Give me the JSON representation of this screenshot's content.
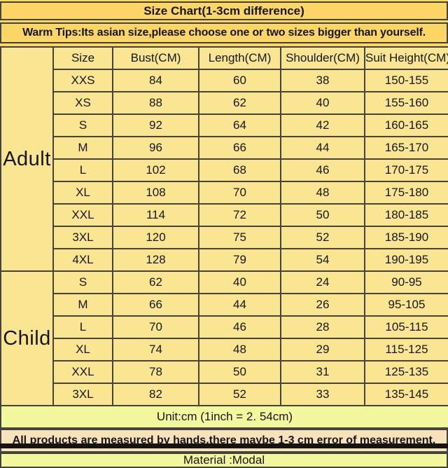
{
  "title": "Size Chart(1-3cm difference)",
  "warm_tips": "Warm Tips:Its asian size,please choose one or two sizes bigger than yourself.",
  "table": {
    "headers": [
      "Size",
      "Bust(CM)",
      "Length(CM)",
      "Shoulder(CM)",
      "Suit Height(CM)"
    ],
    "groups": [
      {
        "label": "Adult",
        "rows": [
          [
            "XXS",
            "84",
            "60",
            "38",
            "150-155"
          ],
          [
            "XS",
            "88",
            "62",
            "40",
            "155-160"
          ],
          [
            "S",
            "92",
            "64",
            "42",
            "160-165"
          ],
          [
            "M",
            "96",
            "66",
            "44",
            "165-170"
          ],
          [
            "L",
            "102",
            "68",
            "46",
            "170-175"
          ],
          [
            "XL",
            "108",
            "70",
            "48",
            "175-180"
          ],
          [
            "XXL",
            "114",
            "72",
            "50",
            "180-185"
          ],
          [
            "3XL",
            "120",
            "75",
            "52",
            "185-190"
          ],
          [
            "4XL",
            "128",
            "79",
            "54",
            "190-195"
          ]
        ]
      },
      {
        "label": "Child",
        "rows": [
          [
            "S",
            "62",
            "40",
            "24",
            "90-95"
          ],
          [
            "M",
            "66",
            "44",
            "26",
            "95-105"
          ],
          [
            "L",
            "70",
            "46",
            "28",
            "105-115"
          ],
          [
            "XL",
            "74",
            "48",
            "29",
            "115-125"
          ],
          [
            "XXL",
            "78",
            "50",
            "31",
            "125-135"
          ],
          [
            "3XL",
            "82",
            "52",
            "33",
            "135-145"
          ]
        ]
      }
    ]
  },
  "unit_note": "Unit:cm (1inch = 2. 54cm)",
  "measure_note": "All products are measured by hands,there maybe 1-3 cm error of measurement.",
  "material_note": "Material :Modal",
  "colors": {
    "page_background": "#fbd565",
    "table_background": "#fae593",
    "note_background": "#f3f79e",
    "measure_background": "#f8e2bd",
    "border": "#44443a",
    "text": "#161616",
    "bottom_bar": "#141414"
  },
  "chart_data": {
    "type": "table",
    "title": "Size Chart(1-3cm difference)",
    "columns": [
      "Group",
      "Size",
      "Bust(CM)",
      "Length(CM)",
      "Shoulder(CM)",
      "Suit Height(CM)"
    ],
    "rows": [
      [
        "Adult",
        "XXS",
        84,
        60,
        38,
        "150-155"
      ],
      [
        "Adult",
        "XS",
        88,
        62,
        40,
        "155-160"
      ],
      [
        "Adult",
        "S",
        92,
        64,
        42,
        "160-165"
      ],
      [
        "Adult",
        "M",
        96,
        66,
        44,
        "165-170"
      ],
      [
        "Adult",
        "L",
        102,
        68,
        46,
        "170-175"
      ],
      [
        "Adult",
        "XL",
        108,
        70,
        48,
        "175-180"
      ],
      [
        "Adult",
        "XXL",
        114,
        72,
        50,
        "180-185"
      ],
      [
        "Adult",
        "3XL",
        120,
        75,
        52,
        "185-190"
      ],
      [
        "Adult",
        "4XL",
        128,
        79,
        54,
        "190-195"
      ],
      [
        "Child",
        "S",
        62,
        40,
        24,
        "90-95"
      ],
      [
        "Child",
        "M",
        66,
        44,
        26,
        "95-105"
      ],
      [
        "Child",
        "L",
        70,
        46,
        28,
        "105-115"
      ],
      [
        "Child",
        "XL",
        74,
        48,
        29,
        "115-125"
      ],
      [
        "Child",
        "XXL",
        78,
        50,
        31,
        "125-135"
      ],
      [
        "Child",
        "3XL",
        82,
        52,
        33,
        "135-145"
      ]
    ],
    "notes": [
      "Warm Tips:Its asian size,please choose one or two sizes bigger than yourself.",
      "Unit:cm (1inch = 2. 54cm)",
      "All products are measured by hands,there maybe 1-3 cm error of measurement.",
      "Material :Modal"
    ]
  }
}
